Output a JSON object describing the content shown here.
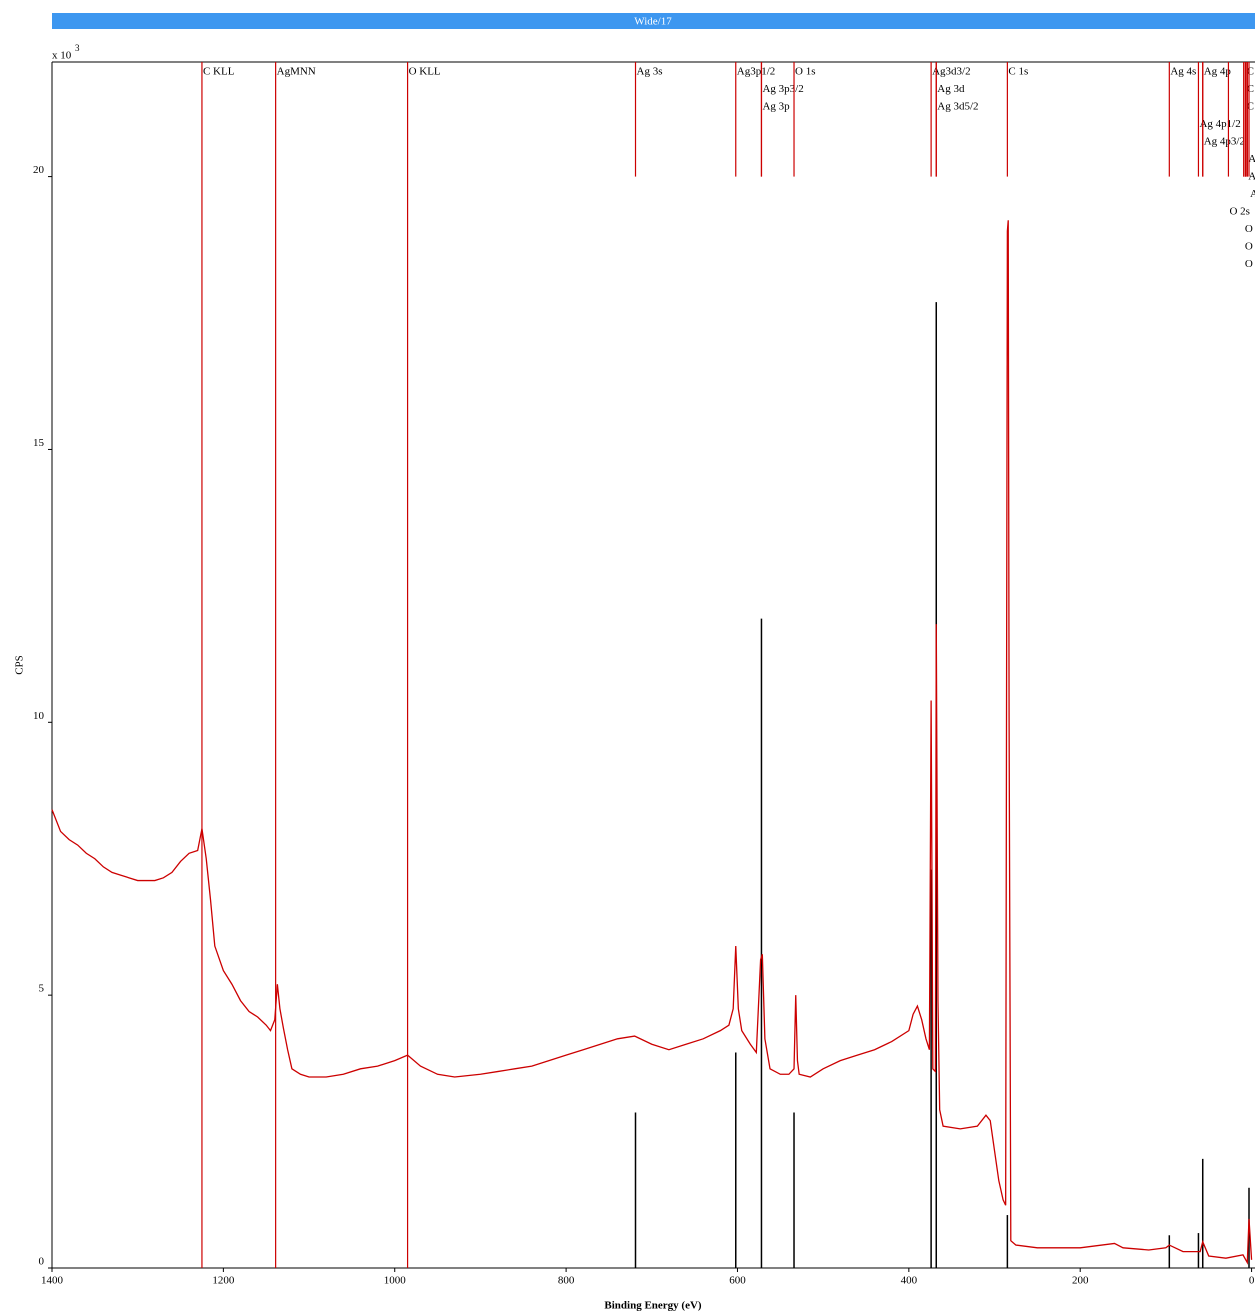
{
  "chart_data": {
    "type": "line",
    "title": "Wide/17",
    "x_label": "Binding Energy (eV)",
    "y_label": "CPS",
    "y_multiplier": "x 10",
    "y_multiplier_exponent": "3",
    "xlim": [
      1400,
      -4
    ],
    "ylim": [
      0,
      22.1
    ],
    "xticks": [
      1400,
      1200,
      1000,
      800,
      600,
      400,
      200,
      0
    ],
    "yticks": [
      0,
      5,
      10,
      15,
      20
    ],
    "color": "#cc0000",
    "x": [
      1400,
      1390,
      1380,
      1370,
      1360,
      1350,
      1340,
      1330,
      1320,
      1310,
      1300,
      1290,
      1280,
      1270,
      1260,
      1250,
      1240,
      1230,
      1225,
      1220,
      1215,
      1210,
      1200,
      1190,
      1180,
      1170,
      1160,
      1150,
      1145,
      1140,
      1137,
      1134,
      1130,
      1125,
      1120,
      1110,
      1100,
      1080,
      1060,
      1040,
      1020,
      1000,
      985,
      970,
      950,
      930,
      900,
      880,
      860,
      840,
      820,
      800,
      780,
      760,
      740,
      720,
      700,
      680,
      660,
      640,
      620,
      610,
      605,
      602,
      599,
      595,
      585,
      578,
      573,
      571,
      568,
      562,
      550,
      540,
      534,
      532,
      530,
      528,
      515,
      500,
      480,
      460,
      440,
      420,
      400,
      395,
      390,
      385,
      380,
      376,
      374,
      372,
      369,
      368,
      366,
      364,
      360,
      340,
      320,
      310,
      305,
      300,
      295,
      290,
      287,
      285,
      284,
      283,
      281,
      275,
      250,
      200,
      160,
      150,
      120,
      100,
      96,
      80,
      60,
      57,
      50,
      30,
      10,
      5,
      3,
      0
    ],
    "values": [
      8.4,
      8.0,
      7.85,
      7.75,
      7.6,
      7.5,
      7.35,
      7.25,
      7.2,
      7.15,
      7.1,
      7.1,
      7.1,
      7.15,
      7.25,
      7.45,
      7.6,
      7.65,
      8.05,
      7.5,
      6.75,
      5.9,
      5.45,
      5.2,
      4.9,
      4.7,
      4.6,
      4.45,
      4.35,
      4.55,
      5.2,
      4.75,
      4.4,
      4.0,
      3.65,
      3.55,
      3.5,
      3.5,
      3.55,
      3.65,
      3.7,
      3.8,
      3.9,
      3.7,
      3.55,
      3.5,
      3.55,
      3.6,
      3.65,
      3.7,
      3.8,
      3.9,
      4.0,
      4.1,
      4.2,
      4.25,
      4.1,
      4.0,
      4.1,
      4.2,
      4.35,
      4.45,
      4.75,
      5.9,
      4.75,
      4.35,
      4.1,
      3.95,
      5.65,
      5.75,
      4.2,
      3.65,
      3.55,
      3.55,
      3.65,
      5.0,
      3.8,
      3.55,
      3.5,
      3.65,
      3.8,
      3.9,
      4.0,
      4.15,
      4.35,
      4.65,
      4.8,
      4.55,
      4.2,
      4.0,
      10.4,
      3.65,
      3.6,
      11.8,
      4.9,
      2.9,
      2.6,
      2.55,
      2.6,
      2.8,
      2.7,
      2.15,
      1.6,
      1.25,
      1.15,
      19.0,
      19.2,
      10.1,
      0.5,
      0.42,
      0.37,
      0.37,
      0.45,
      0.37,
      0.33,
      0.37,
      0.42,
      0.3,
      0.3,
      0.48,
      0.22,
      0.18,
      0.24,
      0.1,
      0.9,
      0.15
    ],
    "reference_lines": {
      "color": "#000000",
      "x": [
        719,
        602,
        572,
        534,
        374,
        368,
        285,
        96,
        62,
        57,
        3
      ],
      "values": [
        2.85,
        3.95,
        11.9,
        2.85,
        7.3,
        17.7,
        0.97,
        0.6,
        0.64,
        2.0,
        1.47
      ]
    },
    "markers": {
      "color": "#cc0000",
      "labels": [
        "C KLL",
        "AgMNN",
        "O KLL",
        "Ag 3s",
        "Ag3p1/2",
        "Ag 3p3/2",
        "Ag 3p",
        "O 1s",
        "Ag3d3/2",
        "Ag 3d",
        "Ag 3d5/2",
        "C 1s",
        "Ag 4s",
        "Ag 4p",
        "Ag 4p1/2",
        "Ag 4p3/2",
        "C",
        "C",
        "C",
        "A",
        "A",
        "A",
        "O 2s",
        "O",
        "O",
        "O"
      ],
      "x": [
        1225,
        1139,
        985,
        719,
        602,
        572,
        572,
        534,
        374,
        368,
        368,
        285,
        96,
        57,
        62,
        57,
        7,
        7,
        7,
        5,
        5,
        3,
        27,
        9,
        9,
        9
      ],
      "line_bottom": [
        0,
        0,
        0,
        20,
        20,
        20,
        20,
        20,
        20,
        20,
        20,
        20,
        20,
        20,
        20,
        20,
        20,
        20,
        20,
        20,
        20,
        20,
        20,
        20,
        20,
        20
      ]
    }
  }
}
